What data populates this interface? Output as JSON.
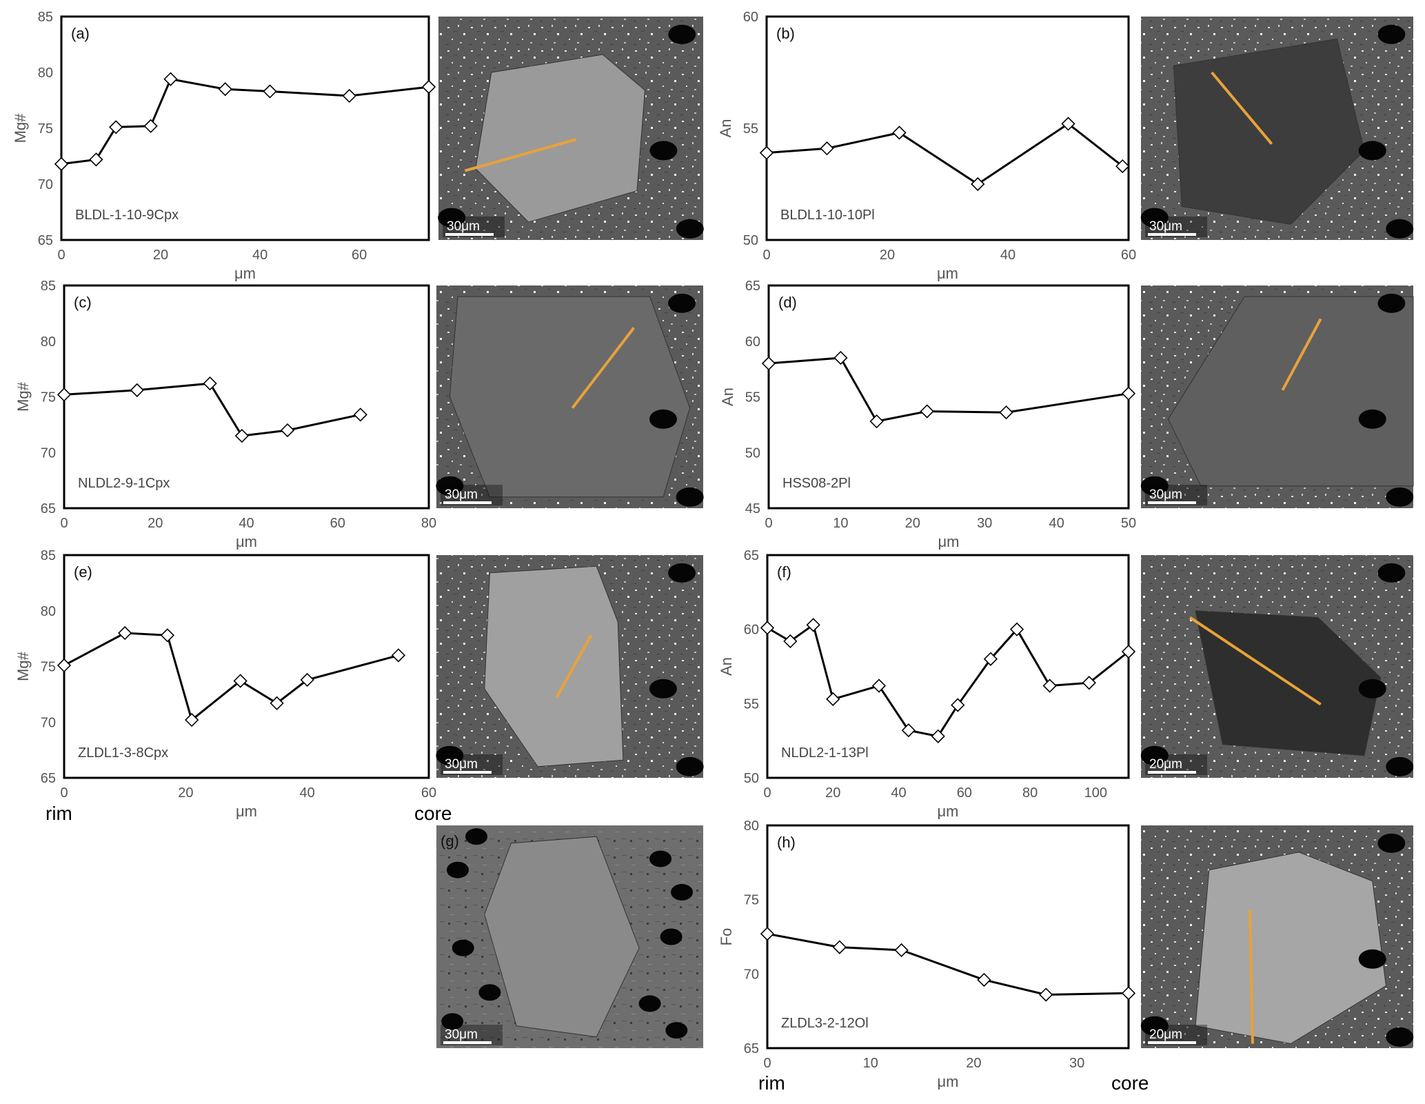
{
  "chart_data": [
    {
      "type": "line",
      "panel_label": "(a)",
      "sample": "BLDL-1-10-9Cpx",
      "xlabel": "μm",
      "ylabel": "Mg#",
      "xlim": [
        0,
        74
      ],
      "ylim": [
        65,
        85
      ],
      "xticks": [
        0,
        20,
        40,
        60
      ],
      "yticks": [
        65,
        70,
        75,
        80,
        85
      ],
      "x": [
        0,
        7,
        11,
        18,
        22,
        33,
        42,
        58,
        74
      ],
      "y": [
        71.8,
        72.2,
        75.1,
        75.2,
        79.4,
        78.5,
        78.3,
        77.9,
        78.7
      ],
      "image": {
        "scale_label": "30μm",
        "panel_letter": ""
      }
    },
    {
      "type": "line",
      "panel_label": "(b)",
      "sample": "BLDL1-10-10Pl",
      "xlabel": "μm",
      "ylabel": "An",
      "xlim": [
        0,
        60
      ],
      "ylim": [
        50,
        60
      ],
      "xticks": [
        0,
        20,
        40,
        60
      ],
      "yticks": [
        50,
        55,
        60
      ],
      "x": [
        0,
        10,
        22,
        35,
        50,
        59
      ],
      "y": [
        53.9,
        54.1,
        54.8,
        52.5,
        55.2,
        53.3
      ],
      "image": {
        "scale_label": "30μm",
        "panel_letter": ""
      }
    },
    {
      "type": "line",
      "panel_label": "(c)",
      "sample": "NLDL2-9-1Cpx",
      "xlabel": "μm",
      "ylabel": "Mg#",
      "xlim": [
        0,
        80
      ],
      "ylim": [
        65,
        85
      ],
      "xticks": [
        0,
        20,
        40,
        60,
        80
      ],
      "yticks": [
        65,
        70,
        75,
        80,
        85
      ],
      "x": [
        0,
        16,
        32,
        39,
        49,
        65
      ],
      "y": [
        75.2,
        75.6,
        76.2,
        71.5,
        72.0,
        73.4
      ],
      "image": {
        "scale_label": "30μm",
        "panel_letter": ""
      }
    },
    {
      "type": "line",
      "panel_label": "(d)",
      "sample": "HSS08-2Pl",
      "xlabel": "μm",
      "ylabel": "An",
      "xlim": [
        0,
        50
      ],
      "ylim": [
        45,
        65
      ],
      "xticks": [
        0,
        10,
        20,
        30,
        40,
        50
      ],
      "yticks": [
        45,
        50,
        55,
        60,
        65
      ],
      "x": [
        0,
        10,
        15,
        22,
        33,
        50
      ],
      "y": [
        58.0,
        58.5,
        52.8,
        53.7,
        53.6,
        55.3
      ],
      "image": {
        "scale_label": "30μm",
        "panel_letter": ""
      }
    },
    {
      "type": "line",
      "panel_label": "(e)",
      "sample": "ZLDL1-3-8Cpx",
      "xlabel": "μm",
      "ylabel": "Mg#",
      "xlim": [
        0,
        60
      ],
      "ylim": [
        65,
        85
      ],
      "xticks": [
        0,
        20,
        40,
        60
      ],
      "yticks": [
        65,
        70,
        75,
        80,
        85
      ],
      "x": [
        0,
        10,
        17,
        21,
        29,
        35,
        40,
        55
      ],
      "y": [
        75.1,
        78.0,
        77.8,
        70.2,
        73.7,
        71.7,
        73.8,
        76.0
      ],
      "image": {
        "scale_label": "30μm",
        "panel_letter": ""
      }
    },
    {
      "type": "line",
      "panel_label": "(f)",
      "sample": "NLDL2-1-13Pl",
      "xlabel": "μm",
      "ylabel": "An",
      "xlim": [
        0,
        110
      ],
      "ylim": [
        50,
        65
      ],
      "xticks": [
        0,
        20,
        40,
        60,
        80,
        100
      ],
      "yticks": [
        50,
        55,
        60,
        65
      ],
      "x": [
        0,
        7,
        14,
        20,
        34,
        43,
        52,
        58,
        68,
        76,
        86,
        98,
        110
      ],
      "y": [
        60.1,
        59.2,
        60.3,
        55.3,
        56.2,
        53.2,
        52.8,
        54.9,
        58.0,
        60.0,
        56.2,
        56.4,
        58.5
      ],
      "image": {
        "scale_label": "20μm",
        "panel_letter": ""
      }
    },
    {
      "type": "line",
      "panel_label": "(h)",
      "sample": "ZLDL3-2-12Ol",
      "xlabel": "μm",
      "ylabel": "Fo",
      "xlim": [
        0,
        35
      ],
      "ylim": [
        65,
        80
      ],
      "xticks": [
        0,
        10,
        20,
        30
      ],
      "yticks": [
        65,
        70,
        75,
        80
      ],
      "x": [
        0,
        7,
        13,
        21,
        27,
        35
      ],
      "y": [
        72.7,
        71.8,
        71.6,
        69.6,
        68.6,
        68.7
      ],
      "image": {
        "scale_label": "20μm",
        "panel_letter": ""
      }
    }
  ],
  "image_only_panel": {
    "panel_letter": "(g)",
    "scale_label": "30μm"
  },
  "annotations": {
    "rim": "rim",
    "core": "core"
  },
  "colors": {
    "profile_line": "#e8a23a",
    "series": "#000000"
  }
}
